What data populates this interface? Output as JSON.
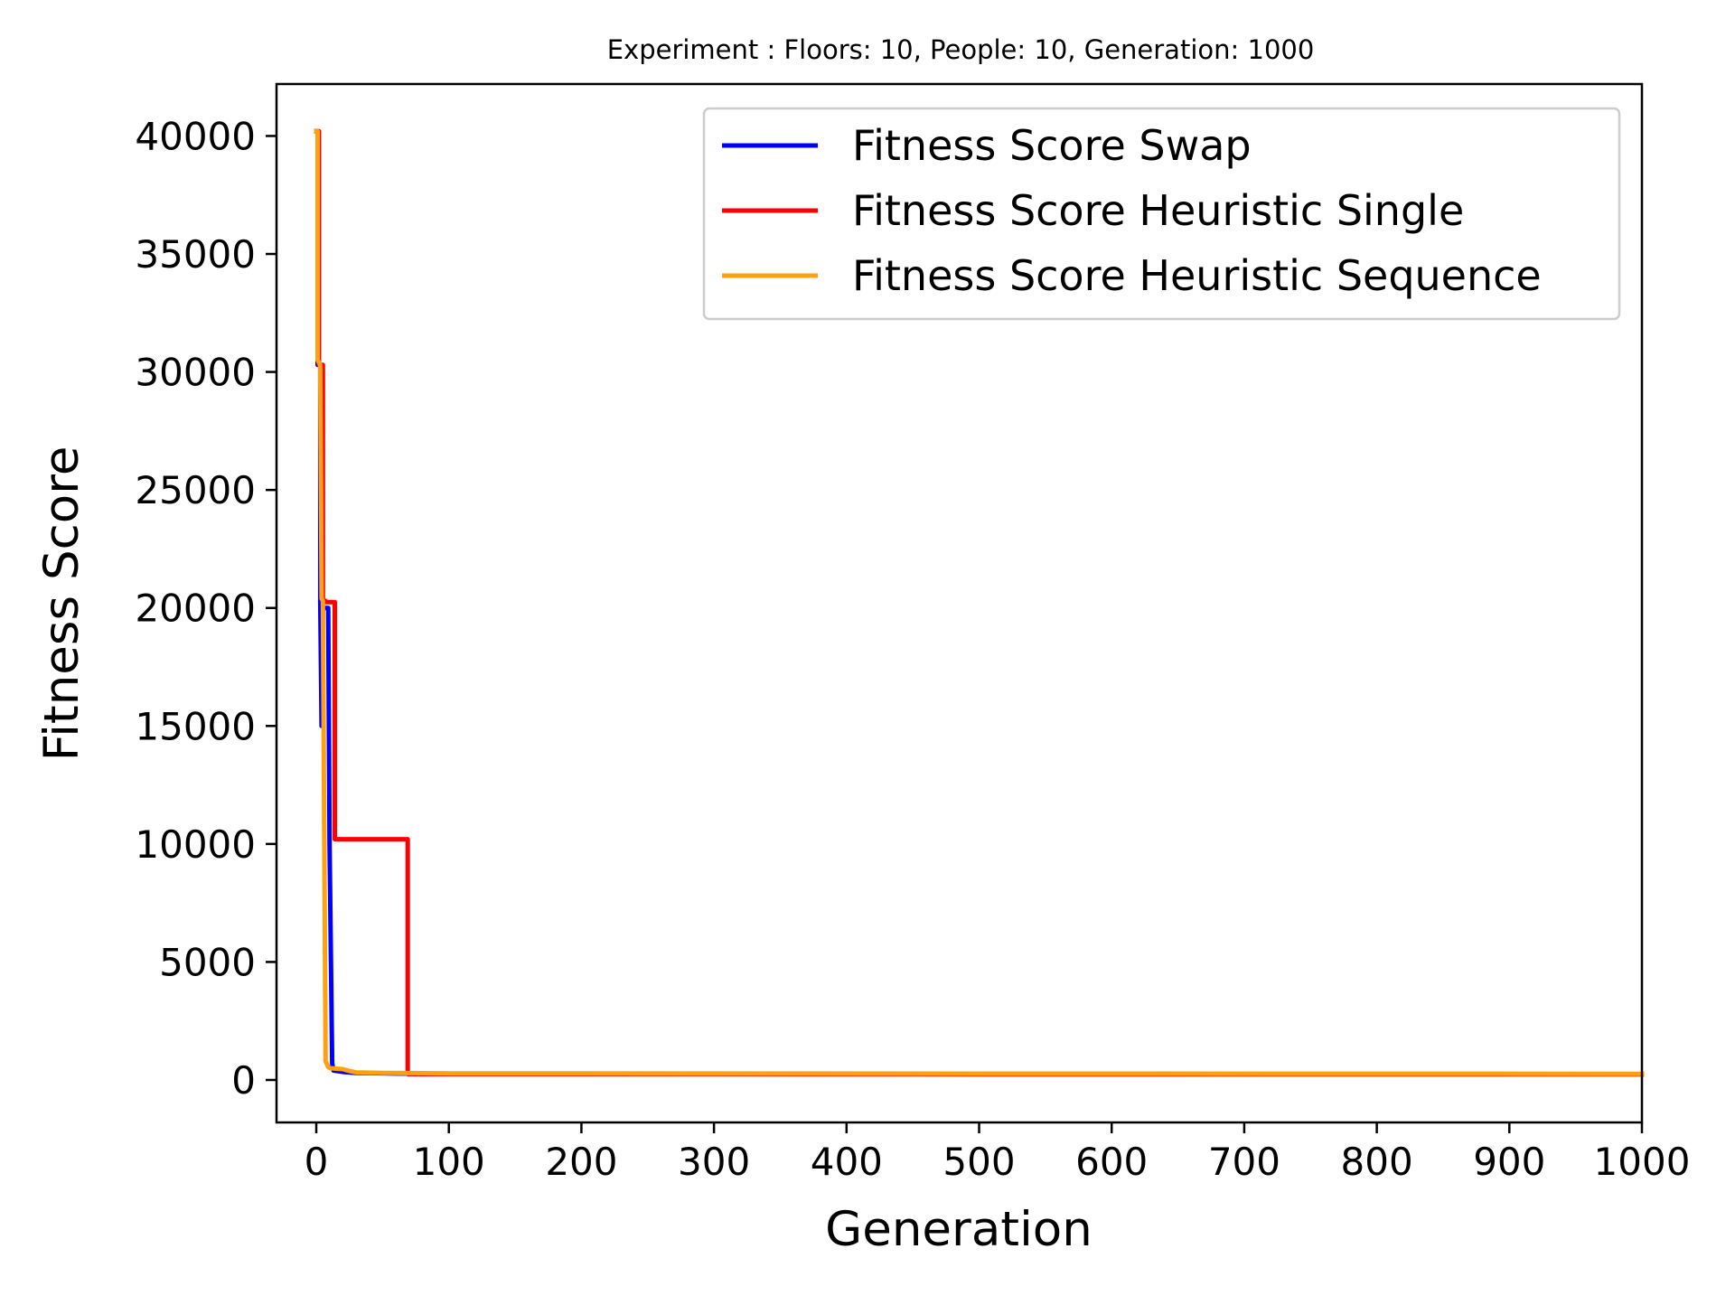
{
  "chart_data": {
    "type": "line",
    "title": "Experiment : Floors: 10, People: 10, Generation: 1000",
    "xlabel": "Generation",
    "ylabel": "Fitness Score",
    "xlim": [
      -30,
      1000
    ],
    "ylim": [
      -1800,
      42200
    ],
    "xticks": [
      0,
      100,
      200,
      300,
      400,
      500,
      600,
      700,
      800,
      900,
      1000
    ],
    "yticks": [
      0,
      5000,
      10000,
      15000,
      20000,
      25000,
      30000,
      35000,
      40000
    ],
    "grid": false,
    "legend_position": "top-right",
    "series": [
      {
        "name": "Fitness Score Swap",
        "color": "#0000ff",
        "x": [
          0,
          1,
          1,
          3,
          3,
          4,
          5,
          6,
          7,
          9,
          10,
          12,
          13,
          18,
          22,
          30,
          40,
          60,
          100,
          300,
          500,
          1000
        ],
        "y": [
          40200,
          40200,
          30300,
          30300,
          20300,
          15000,
          20000,
          20000,
          20000,
          20000,
          10000,
          700,
          400,
          360,
          330,
          300,
          290,
          270,
          260,
          250,
          240,
          240
        ]
      },
      {
        "name": "Fitness Score Heuristic Single",
        "color": "#ff0000",
        "x": [
          0,
          2,
          2,
          5,
          5,
          7,
          7,
          12,
          14,
          14,
          68,
          69,
          69,
          100,
          1000
        ],
        "y": [
          40200,
          40200,
          30300,
          30300,
          20300,
          20300,
          20250,
          20250,
          20250,
          10200,
          10200,
          10200,
          250,
          250,
          250
        ]
      },
      {
        "name": "Fitness Score Heuristic Sequence",
        "color": "#ffa010",
        "x": [
          0,
          1,
          1,
          3,
          4,
          5,
          6,
          7,
          9,
          10,
          15,
          20,
          25,
          30,
          50,
          70,
          100,
          300,
          1000
        ],
        "y": [
          40200,
          40200,
          30500,
          30300,
          20400,
          20300,
          10500,
          800,
          550,
          500,
          480,
          460,
          380,
          320,
          300,
          290,
          280,
          270,
          260
        ]
      }
    ]
  }
}
